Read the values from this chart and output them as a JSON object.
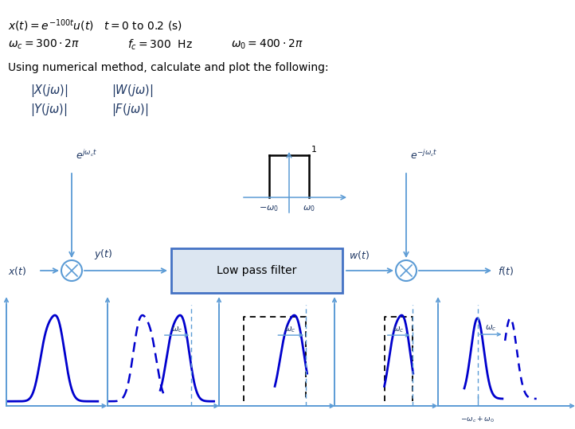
{
  "bg_color": "#ffffff",
  "blue": "#4472c4",
  "dark_blue": "#1f497d",
  "light_blue": "#5b9bd5",
  "arrow_blue": "#5b9bd5",
  "text_black": "#000000",
  "italic_blue": "#1f3864",
  "dashed_gray": "#808080",
  "box_fill": "#dce6f1",
  "box_edge": "#4472c4",
  "plot_line": "#0000cd",
  "plot_dashed": "#0000cd"
}
